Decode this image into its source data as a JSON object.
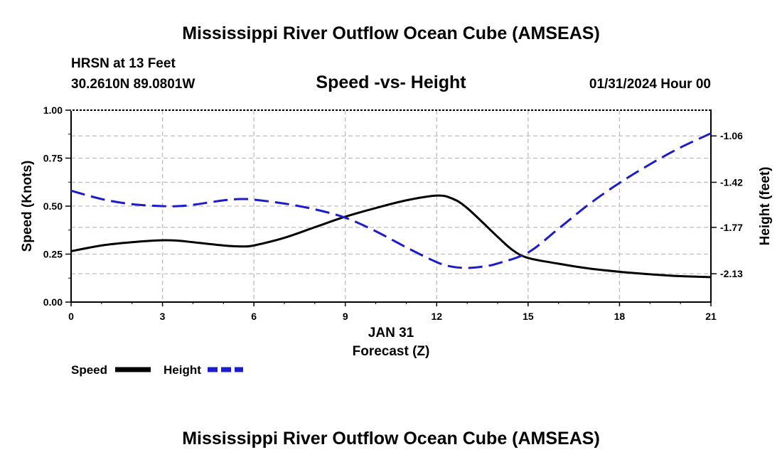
{
  "chart_data": {
    "type": "line",
    "title": "Mississippi River Outflow Ocean Cube (AMSEAS)",
    "footer_title": "Mississippi River Outflow Ocean Cube (AMSEAS)",
    "station": "HRSN at 13 Feet",
    "location": "30.2610N  89.0801W",
    "subtitle": "Speed -vs- Height",
    "date": "01/31/2024 Hour 00",
    "xlabel_date": "JAN 31",
    "xlabel": "Forecast (Z)",
    "ylabel_left": "Speed (Knots)",
    "ylabel_right": "Height (feet)",
    "xlim": [
      0,
      21
    ],
    "xticks": [
      "0",
      "3",
      "6",
      "9",
      "12",
      "15",
      "18",
      "21"
    ],
    "ylim_left": [
      0,
      1
    ],
    "yticks_left": [
      "0.00",
      "0.25",
      "0.50",
      "0.75",
      "1.00"
    ],
    "ylim_right": [
      -2.35,
      -0.86
    ],
    "yticks_right": [
      -2.13,
      -1.77,
      -1.42,
      -1.06
    ],
    "yticks_right_labels": [
      "-2.13",
      "-1.77",
      "-1.42",
      "-1.06"
    ],
    "series": [
      {
        "name": "Speed",
        "color": "#000000",
        "style": "solid",
        "x": [
          0,
          1,
          2,
          3,
          3.5,
          4,
          5,
          5.6,
          6,
          7,
          8,
          9,
          10,
          11,
          12,
          12.5,
          13,
          14,
          14.5,
          15,
          16,
          17,
          18,
          19,
          20,
          21
        ],
        "y": [
          0.265,
          0.295,
          0.312,
          0.322,
          0.32,
          0.312,
          0.295,
          0.29,
          0.295,
          0.335,
          0.39,
          0.445,
          0.49,
          0.53,
          0.555,
          0.54,
          0.49,
          0.34,
          0.27,
          0.23,
          0.2,
          0.175,
          0.158,
          0.145,
          0.135,
          0.13
        ]
      },
      {
        "name": "Height",
        "color": "#1c1ccc",
        "style": "dashed",
        "x": [
          0,
          1,
          2,
          3,
          3.5,
          4,
          5,
          5.6,
          6,
          7,
          8,
          9,
          10,
          11,
          12,
          12.5,
          13,
          13.5,
          14,
          15,
          16,
          17,
          18,
          19,
          20,
          21
        ],
        "y": [
          -1.485,
          -1.55,
          -1.59,
          -1.605,
          -1.605,
          -1.595,
          -1.56,
          -1.55,
          -1.555,
          -1.585,
          -1.63,
          -1.695,
          -1.8,
          -1.925,
          -2.04,
          -2.075,
          -2.085,
          -2.075,
          -2.05,
          -1.965,
          -1.78,
          -1.59,
          -1.425,
          -1.28,
          -1.15,
          -1.04
        ]
      }
    ],
    "legend": [
      {
        "label": "Speed"
      },
      {
        "label": "Height"
      }
    ]
  }
}
